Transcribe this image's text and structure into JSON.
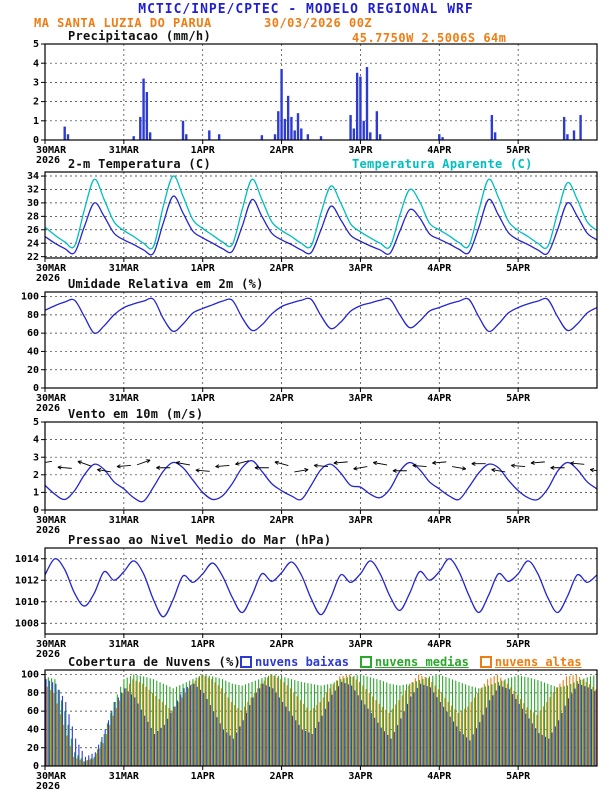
{
  "header": {
    "title": "MCTIC/INPE/CPTEC - MODELO REGIONAL WRF",
    "station": "MA SANTA LUZIA DO PARUA",
    "run": "30/03/2026 00Z",
    "location": "45.7750W 2.5006S 64m"
  },
  "colors": {
    "blue": "#2525d0",
    "cyan": "#00bfbf",
    "orange": "#f07d14",
    "green": "#2aa82a",
    "bar_blue": "#2d3bd0",
    "title_blue": "#1f1fd0",
    "axis": "#000000",
    "grid": "#333333"
  },
  "x_axis": {
    "start_hour": 0,
    "end_hour": 168,
    "step_hours": 3,
    "tick_hours": [
      0,
      24,
      48,
      72,
      96,
      120,
      144
    ],
    "tick_labels": [
      "30MAR",
      "31MAR",
      "1APR",
      "2APR",
      "3APR",
      "4APR",
      "5APR"
    ],
    "year_label": "2026"
  },
  "chart_data": [
    {
      "id": "precip",
      "type": "bar",
      "title": "Precipitacao (mm/h)",
      "ylabel": "mm/h",
      "ylim": [
        0,
        5
      ],
      "yticks": [
        0,
        1,
        2,
        3,
        4,
        5
      ],
      "bar_color": "bar_blue",
      "events": [
        [
          6,
          0.7
        ],
        [
          7,
          0.3
        ],
        [
          27,
          0.2
        ],
        [
          29,
          1.2
        ],
        [
          30,
          3.2
        ],
        [
          31,
          2.5
        ],
        [
          32,
          0.4
        ],
        [
          42,
          1.0
        ],
        [
          43,
          0.3
        ],
        [
          50,
          0.5
        ],
        [
          53,
          0.3
        ],
        [
          66,
          0.25
        ],
        [
          70,
          0.3
        ],
        [
          71,
          1.5
        ],
        [
          72,
          3.7
        ],
        [
          73,
          1.1
        ],
        [
          74,
          2.3
        ],
        [
          75,
          1.2
        ],
        [
          76,
          0.5
        ],
        [
          77,
          1.4
        ],
        [
          78,
          0.6
        ],
        [
          80,
          0.3
        ],
        [
          84,
          0.2
        ],
        [
          93,
          1.3
        ],
        [
          94,
          0.6
        ],
        [
          95,
          3.5
        ],
        [
          96,
          3.3
        ],
        [
          97,
          1.0
        ],
        [
          98,
          3.8
        ],
        [
          99,
          0.4
        ],
        [
          101,
          1.5
        ],
        [
          102,
          0.3
        ],
        [
          120,
          0.3
        ],
        [
          121,
          0.15
        ],
        [
          136,
          1.3
        ],
        [
          137,
          0.4
        ],
        [
          158,
          1.2
        ],
        [
          159,
          0.3
        ],
        [
          161,
          0.5
        ],
        [
          163,
          1.3
        ]
      ]
    },
    {
      "id": "temp",
      "type": "line",
      "title": "2-m Temperatura (C)",
      "title2": "Temperatura Aparente (C)",
      "ylim": [
        21.8,
        34.6
      ],
      "yticks": [
        22,
        24,
        26,
        28,
        30,
        32,
        34
      ],
      "series": [
        {
          "name": "2-m Temperatura (C)",
          "color": "blue",
          "values": [
            25.0,
            24.0,
            23.2,
            22.6,
            26.5,
            30.0,
            28.0,
            25.5,
            24.5,
            23.8,
            23.0,
            22.5,
            27.0,
            31.0,
            28.5,
            25.8,
            24.8,
            24.0,
            23.2,
            22.8,
            26.5,
            30.5,
            28.0,
            25.5,
            24.5,
            23.8,
            23.0,
            22.6,
            26.0,
            29.5,
            27.5,
            25.2,
            24.3,
            23.6,
            23.0,
            22.5,
            25.8,
            29.0,
            27.8,
            25.4,
            24.6,
            23.9,
            23.1,
            22.6,
            26.3,
            30.5,
            28.2,
            25.6,
            24.5,
            23.8,
            23.0,
            22.5,
            26.0,
            30.0,
            28.0,
            25.5,
            24.5
          ]
        },
        {
          "name": "Temperatura Aparente (C)",
          "color": "cyan",
          "values": [
            26.4,
            25.2,
            24.2,
            23.6,
            29.0,
            33.5,
            30.5,
            27.2,
            25.9,
            25.0,
            24.0,
            23.5,
            29.5,
            34.0,
            31.0,
            27.5,
            26.2,
            25.2,
            24.2,
            23.8,
            29.0,
            33.5,
            30.5,
            27.2,
            25.9,
            25.0,
            24.0,
            23.6,
            28.5,
            32.5,
            30.0,
            26.9,
            25.7,
            24.8,
            24.0,
            23.5,
            28.2,
            32.0,
            30.2,
            27.0,
            26.0,
            25.1,
            24.1,
            23.6,
            28.8,
            33.5,
            30.8,
            27.3,
            25.9,
            25.0,
            24.0,
            23.5,
            28.5,
            33.0,
            30.5,
            27.2,
            25.9
          ]
        }
      ]
    },
    {
      "id": "rh",
      "type": "line",
      "title": "Umidade Relativa em 2m (%)",
      "ylim": [
        0,
        105
      ],
      "yticks": [
        0,
        20,
        40,
        60,
        80,
        100
      ],
      "series": [
        {
          "name": "Umidade Relativa em 2m (%)",
          "color": "blue",
          "values": [
            85,
            90,
            94,
            96,
            78,
            60,
            68,
            80,
            88,
            92,
            95,
            97,
            76,
            62,
            70,
            82,
            87,
            91,
            95,
            96,
            77,
            63,
            69,
            81,
            89,
            93,
            96,
            97,
            79,
            65,
            72,
            84,
            90,
            93,
            96,
            97,
            80,
            66,
            73,
            84,
            88,
            92,
            95,
            97,
            78,
            62,
            70,
            82,
            88,
            92,
            95,
            97,
            78,
            63,
            70,
            82,
            88
          ]
        }
      ]
    },
    {
      "id": "wind",
      "type": "wind",
      "title": "Vento em 10m (m/s)",
      "ylim": [
        0,
        5
      ],
      "yticks": [
        0,
        1,
        2,
        3,
        4,
        5
      ],
      "arrow_step_hours": 6,
      "arrow_dirs_deg": [
        80,
        95,
        110,
        100,
        85,
        250,
        90,
        100,
        95,
        85,
        75,
        90,
        105,
        260,
        95,
        85,
        80,
        100,
        90,
        95,
        85,
        280,
        90,
        100,
        95,
        85,
        90,
        95,
        100
      ],
      "series": [
        {
          "name": "Vento em 10m (m/s)",
          "color": "blue",
          "values": [
            1.4,
            0.9,
            0.6,
            1.1,
            2.0,
            2.6,
            2.3,
            1.6,
            1.2,
            0.7,
            0.5,
            1.3,
            2.2,
            2.7,
            2.4,
            1.7,
            1.0,
            0.6,
            0.8,
            1.5,
            2.4,
            2.8,
            2.2,
            1.5,
            1.1,
            0.8,
            0.6,
            1.4,
            2.3,
            2.6,
            2.1,
            1.4,
            1.3,
            0.9,
            0.7,
            1.2,
            2.2,
            2.7,
            2.3,
            1.6,
            1.2,
            0.8,
            0.6,
            1.3,
            2.1,
            2.6,
            2.4,
            1.7,
            1.1,
            0.7,
            0.6,
            1.2,
            2.2,
            2.7,
            2.3,
            1.6,
            1.2
          ]
        }
      ]
    },
    {
      "id": "pres",
      "type": "line",
      "title": "Pressao ao Nivel Medio do Mar (hPa)",
      "ylim": [
        1007,
        1015
      ],
      "yticks": [
        1008,
        1010,
        1012,
        1014
      ],
      "series": [
        {
          "name": "Pressao ao Nivel Medio do Mar (hPa)",
          "color": "blue",
          "values": [
            1012.5,
            1014.0,
            1013.0,
            1010.8,
            1009.6,
            1010.8,
            1012.8,
            1012.0,
            1012.8,
            1013.8,
            1012.6,
            1010.2,
            1008.6,
            1010.2,
            1012.4,
            1011.8,
            1012.6,
            1013.6,
            1012.4,
            1010.4,
            1009.0,
            1010.6,
            1012.6,
            1011.9,
            1012.7,
            1013.7,
            1012.5,
            1010.3,
            1008.8,
            1010.4,
            1012.5,
            1011.8,
            1012.6,
            1013.8,
            1012.6,
            1010.5,
            1009.2,
            1010.8,
            1012.8,
            1012.0,
            1012.8,
            1014.0,
            1012.8,
            1010.6,
            1009.0,
            1010.6,
            1012.6,
            1011.9,
            1012.6,
            1013.8,
            1012.6,
            1010.4,
            1009.0,
            1010.5,
            1012.5,
            1011.8,
            1012.5
          ]
        }
      ]
    },
    {
      "id": "clouds",
      "type": "cloudbars",
      "title": "Cobertura de Nuvens (%)",
      "ylim": [
        0,
        105
      ],
      "yticks": [
        0,
        20,
        40,
        60,
        80,
        100
      ],
      "legend": [
        {
          "label": "nuvens baixas",
          "color": "blue"
        },
        {
          "label": "nuvens medias",
          "color": "green"
        },
        {
          "label": "nuvens altas",
          "color": "orange"
        }
      ],
      "series": [
        {
          "name": "nuvens altas",
          "color": "orange",
          "values": [
            90,
            80,
            45,
            10,
            5,
            8,
            25,
            55,
            80,
            95,
            90,
            80,
            70,
            60,
            75,
            90,
            100,
            95,
            85,
            70,
            60,
            75,
            90,
            100,
            95,
            85,
            72,
            60,
            70,
            85,
            98,
            100,
            92,
            80,
            68,
            58,
            72,
            88,
            100,
            96,
            84,
            70,
            58,
            65,
            80,
            95,
            100,
            90,
            78,
            64,
            56,
            70,
            86,
            98,
            100,
            92,
            84
          ]
        },
        {
          "name": "nuvens medias",
          "color": "green",
          "values": [
            98,
            95,
            60,
            15,
            5,
            10,
            35,
            70,
            95,
            100,
            98,
            95,
            90,
            85,
            90,
            95,
            100,
            98,
            95,
            90,
            88,
            92,
            96,
            100,
            98,
            95,
            92,
            90,
            88,
            90,
            95,
            98,
            100,
            97,
            94,
            90,
            88,
            90,
            94,
            98,
            100,
            96,
            92,
            88,
            85,
            88,
            92,
            96,
            99,
            97,
            94,
            90,
            86,
            88,
            93,
            97,
            100
          ]
        },
        {
          "name": "nuvens baixas",
          "color": "bar_blue",
          "values": [
            95,
            90,
            70,
            30,
            10,
            15,
            40,
            70,
            85,
            75,
            55,
            35,
            45,
            65,
            85,
            90,
            80,
            60,
            40,
            30,
            50,
            75,
            90,
            85,
            70,
            55,
            40,
            35,
            55,
            78,
            92,
            88,
            72,
            58,
            42,
            30,
            52,
            76,
            90,
            86,
            70,
            54,
            38,
            28,
            48,
            72,
            88,
            84,
            68,
            52,
            36,
            30,
            50,
            74,
            90,
            86,
            80
          ]
        }
      ]
    }
  ]
}
